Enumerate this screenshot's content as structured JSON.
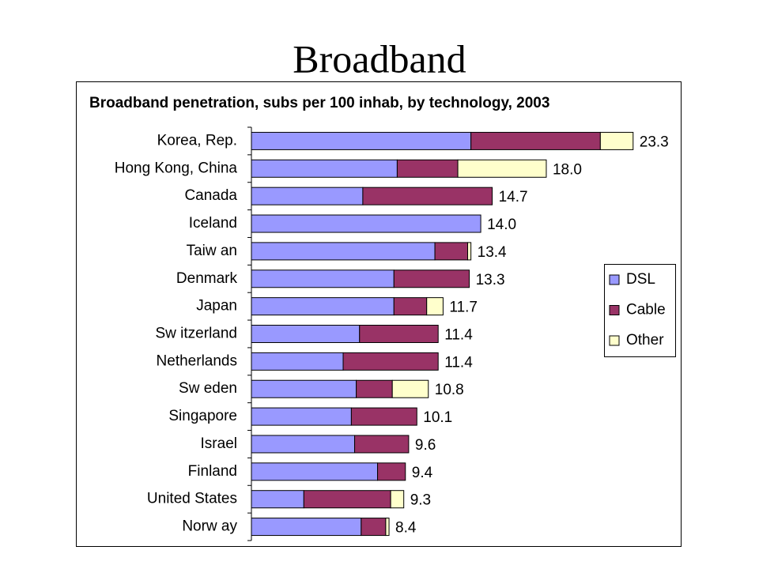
{
  "slide_title": "Broadband",
  "chart_data": {
    "type": "stacked-barh",
    "title": "Broadband penetration, subs per 100 inhab, by technology, 2003",
    "categories": [
      "Korea, Rep.",
      "Hong Kong, China",
      "Canada",
      "Iceland",
      "Taiw an",
      "Denmark",
      "Japan",
      "Sw itzerland",
      "Netherlands",
      "Sw eden",
      "Singapore",
      "Israel",
      "Finland",
      "United States",
      "Norw ay"
    ],
    "series": [
      {
        "name": "DSL",
        "color": "#9999ff",
        "values": [
          13.4,
          8.9,
          6.8,
          14.0,
          11.2,
          8.7,
          8.7,
          6.6,
          5.6,
          6.4,
          6.1,
          6.3,
          7.7,
          3.2,
          6.7
        ]
      },
      {
        "name": "Cable",
        "color": "#993366",
        "values": [
          7.9,
          3.7,
          7.9,
          0,
          2.0,
          4.6,
          2.0,
          4.8,
          5.8,
          2.2,
          4.0,
          3.3,
          1.7,
          5.3,
          1.5
        ]
      },
      {
        "name": "Other",
        "color": "#ffffcc",
        "values": [
          2.0,
          5.4,
          0,
          0,
          0.2,
          0,
          1.0,
          0,
          0,
          2.2,
          0,
          0,
          0,
          0.8,
          0.2
        ]
      }
    ],
    "value_labels": [
      "23.3",
      "18.0",
      "14.7",
      "14.0",
      "13.4",
      "13.3",
      "11.7",
      "11.4",
      "11.4",
      "10.8",
      "10.1",
      "9.6",
      "9.4",
      "9.3",
      "8.4"
    ],
    "xlim": [
      0,
      25
    ],
    "legend": "right"
  }
}
